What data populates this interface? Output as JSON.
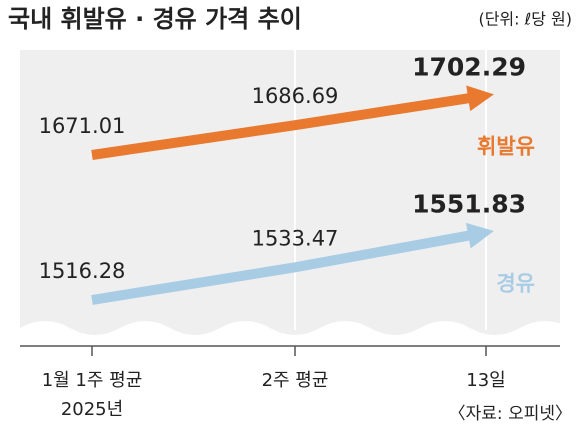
{
  "chart_data": {
    "type": "line",
    "title": "국내 휘발유 · 경유 가격 추이",
    "subtitle": "(단위: ℓ당 원)",
    "categories": [
      "1월 1주 평균",
      "2주 평균",
      "13일"
    ],
    "year_note": "2025년",
    "source": "〈자료: 오피넷〉",
    "series": [
      {
        "name": "휘발유",
        "color": "#e8792e",
        "values": [
          1671.01,
          1686.69,
          1702.29
        ]
      },
      {
        "name": "경유",
        "color": "#a9cce5",
        "values": [
          1516.28,
          1533.47,
          1551.83
        ]
      }
    ]
  }
}
